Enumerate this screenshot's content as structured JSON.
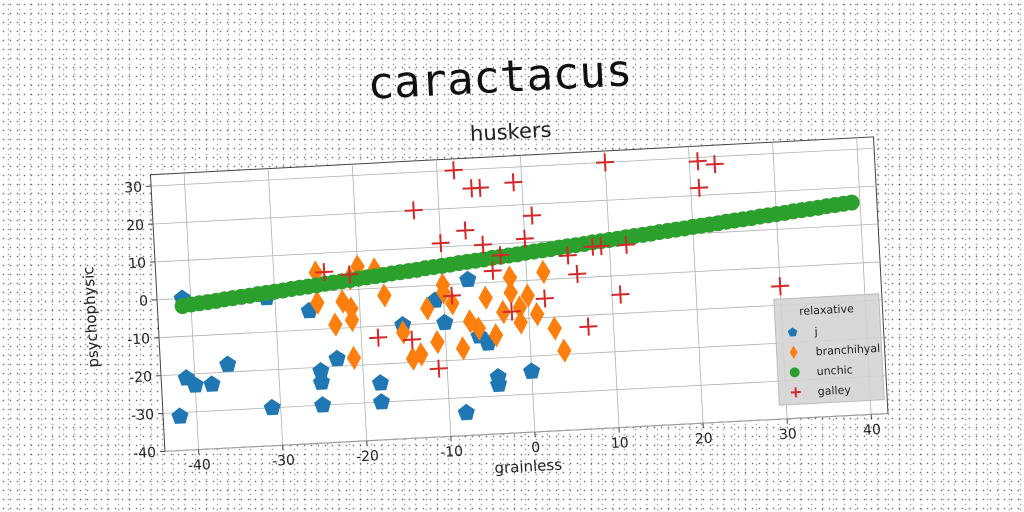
{
  "title": "caractacus",
  "chart_data": {
    "type": "scatter",
    "title": "huskers",
    "xlabel": "grainless",
    "ylabel": "psychophysic",
    "xlim": [
      -44,
      42
    ],
    "ylim": [
      -40,
      33
    ],
    "xticks": [
      -40,
      -30,
      -20,
      -10,
      0,
      10,
      20,
      30,
      40
    ],
    "yticks": [
      -40,
      -30,
      -20,
      -10,
      0,
      10,
      20,
      30
    ],
    "grid": true,
    "legend": {
      "title": "relaxative",
      "position": "lower-right"
    },
    "series": [
      {
        "name": "j",
        "color": "#1f77b4",
        "marker": "pentagon",
        "points": [
          [
            -41,
            0
          ],
          [
            -41,
            -21
          ],
          [
            -40,
            -23
          ],
          [
            -38,
            -23
          ],
          [
            -36,
            -18
          ],
          [
            -42,
            -31
          ],
          [
            -31,
            -30
          ],
          [
            -31,
            -1
          ],
          [
            -26,
            -5
          ],
          [
            -25,
            -21
          ],
          [
            -25,
            -24
          ],
          [
            -25,
            -30
          ],
          [
            -23,
            -18
          ],
          [
            -18,
            -25
          ],
          [
            -18,
            -30
          ],
          [
            -15,
            -10
          ],
          [
            -11,
            -4
          ],
          [
            -10,
            -10
          ],
          [
            -8,
            -34
          ],
          [
            -7,
            1
          ],
          [
            -6,
            -14
          ],
          [
            -5,
            -16
          ],
          [
            -4,
            -27
          ],
          [
            -4,
            -25
          ],
          [
            0,
            -24
          ]
        ]
      },
      {
        "name": "branchihyal",
        "color": "#ff7f0e",
        "marker": "diamond",
        "points": [
          [
            -25,
            5
          ],
          [
            -25,
            -3
          ],
          [
            -23,
            -9
          ],
          [
            -22,
            -3
          ],
          [
            -21,
            -5
          ],
          [
            -21,
            -8
          ],
          [
            -21,
            -18
          ],
          [
            -21,
            3
          ],
          [
            -18,
            5
          ],
          [
            -17,
            -2
          ],
          [
            -15,
            -12
          ],
          [
            -14,
            -19
          ],
          [
            -13,
            -18
          ],
          [
            -12,
            -6
          ],
          [
            -11,
            -15
          ],
          [
            -10,
            0
          ],
          [
            -10,
            -2
          ],
          [
            -9,
            -5
          ],
          [
            -8,
            -17
          ],
          [
            -7,
            -10
          ],
          [
            -6,
            -12
          ],
          [
            -5,
            -4
          ],
          [
            -4,
            -14
          ],
          [
            -3,
            -8
          ],
          [
            -2,
            -3
          ],
          [
            -2,
            1
          ],
          [
            -1,
            -7
          ],
          [
            -1,
            -11
          ],
          [
            0,
            -4
          ],
          [
            1,
            -9
          ],
          [
            2,
            2
          ],
          [
            3,
            -13
          ],
          [
            4,
            -19
          ],
          [
            -20,
            6
          ]
        ]
      },
      {
        "name": "unchic",
        "color": "#2ca02c",
        "marker": "circle",
        "points": [
          [
            -41,
            -2
          ],
          [
            -40,
            -1.7
          ],
          [
            -39,
            -1.5
          ],
          [
            -38,
            -1.3
          ],
          [
            -37,
            -1.1
          ],
          [
            -36,
            -0.8
          ],
          [
            -35,
            -0.6
          ],
          [
            -34,
            -0.4
          ],
          [
            -33,
            -0.2
          ],
          [
            -32,
            0.1
          ],
          [
            -31,
            0.3
          ],
          [
            -30,
            0.5
          ],
          [
            -29,
            0.7
          ],
          [
            -28,
            1
          ],
          [
            -27,
            1.2
          ],
          [
            -26,
            1.4
          ],
          [
            -25,
            1.6
          ],
          [
            -24,
            1.9
          ],
          [
            -23,
            2.1
          ],
          [
            -22,
            2.3
          ],
          [
            -21,
            2.5
          ],
          [
            -20,
            2.8
          ],
          [
            -19,
            3
          ],
          [
            -18,
            3.2
          ],
          [
            -17,
            3.4
          ],
          [
            -16,
            3.7
          ],
          [
            -15,
            3.9
          ],
          [
            -14,
            4.1
          ],
          [
            -13,
            4.3
          ],
          [
            -12,
            4.6
          ],
          [
            -11,
            4.8
          ],
          [
            -10,
            5
          ],
          [
            -9,
            5.2
          ],
          [
            -8,
            5.5
          ],
          [
            -7,
            5.7
          ],
          [
            -6,
            5.9
          ],
          [
            -5,
            6.1
          ],
          [
            -4,
            6.4
          ],
          [
            -3,
            6.6
          ],
          [
            -2,
            6.8
          ],
          [
            -1,
            7
          ],
          [
            0,
            7.3
          ],
          [
            1,
            7.5
          ],
          [
            2,
            7.7
          ],
          [
            3,
            7.9
          ],
          [
            4,
            8.2
          ],
          [
            5,
            8.4
          ],
          [
            6,
            8.6
          ],
          [
            7,
            8.8
          ],
          [
            8,
            9.1
          ],
          [
            9,
            9.3
          ],
          [
            10,
            9.5
          ],
          [
            11,
            9.7
          ],
          [
            12,
            10
          ],
          [
            13,
            10.2
          ],
          [
            14,
            10.4
          ],
          [
            15,
            10.6
          ],
          [
            16,
            10.9
          ],
          [
            17,
            11.1
          ],
          [
            18,
            11.3
          ],
          [
            19,
            11.5
          ],
          [
            20,
            11.8
          ],
          [
            21,
            12
          ],
          [
            22,
            12.2
          ],
          [
            23,
            12.4
          ],
          [
            24,
            12.7
          ],
          [
            25,
            12.9
          ],
          [
            26,
            13.1
          ],
          [
            27,
            13.3
          ],
          [
            28,
            13.6
          ],
          [
            29,
            13.8
          ],
          [
            30,
            14
          ],
          [
            31,
            14.2
          ],
          [
            32,
            14.5
          ],
          [
            33,
            14.7
          ],
          [
            34,
            14.9
          ],
          [
            35,
            15.1
          ],
          [
            36,
            15.4
          ],
          [
            37,
            15.6
          ],
          [
            38,
            15.8
          ],
          [
            39,
            16
          ]
        ]
      },
      {
        "name": "galley",
        "color": "#d62728",
        "marker": "plus",
        "points": [
          [
            -24,
            5
          ],
          [
            -21,
            4
          ],
          [
            -18,
            -13
          ],
          [
            -14,
            -14
          ],
          [
            -13,
            20
          ],
          [
            -11,
            -22
          ],
          [
            -10,
            11
          ],
          [
            -9,
            -3
          ],
          [
            -8,
            30
          ],
          [
            -7,
            14
          ],
          [
            -6,
            25
          ],
          [
            -5,
            25
          ],
          [
            -5,
            10
          ],
          [
            -4,
            3
          ],
          [
            -3,
            7
          ],
          [
            -2,
            -8
          ],
          [
            -1,
            26
          ],
          [
            0,
            11
          ],
          [
            1,
            17
          ],
          [
            2,
            -5
          ],
          [
            5,
            6
          ],
          [
            6,
            1
          ],
          [
            7,
            -13
          ],
          [
            8,
            8
          ],
          [
            9,
            8
          ],
          [
            10,
            30
          ],
          [
            11,
            -5
          ],
          [
            12,
            8
          ],
          [
            21,
            29
          ],
          [
            21,
            22
          ],
          [
            23,
            28
          ],
          [
            30,
            -5
          ]
        ]
      }
    ]
  }
}
